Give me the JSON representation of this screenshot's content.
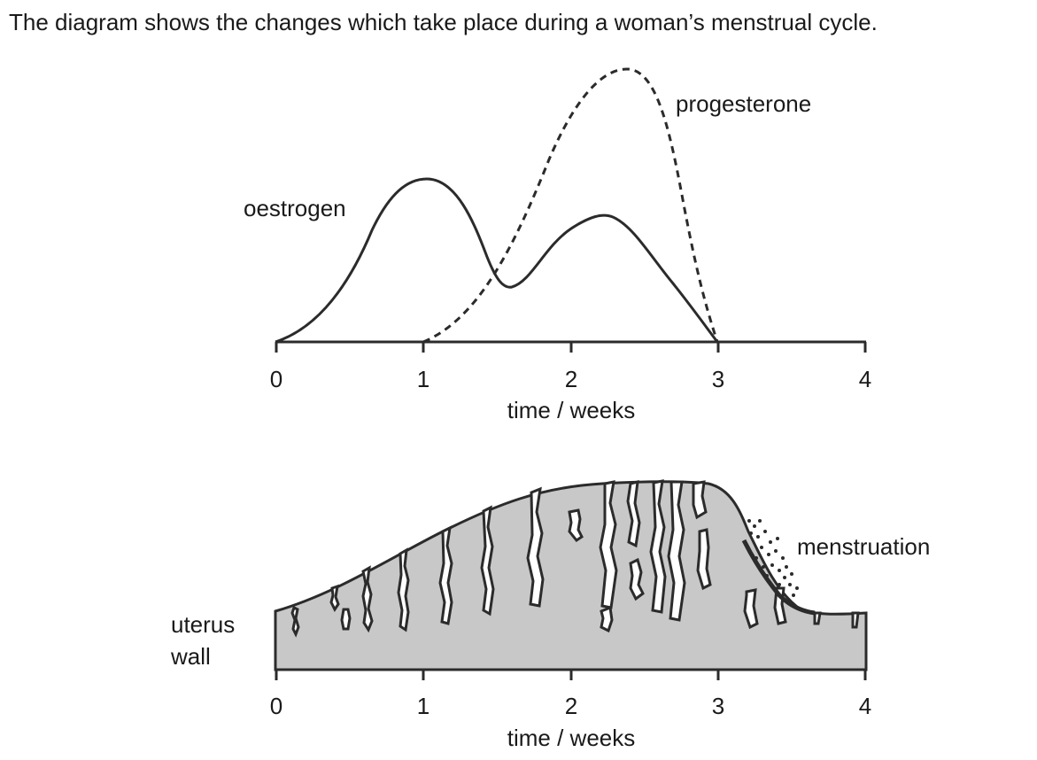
{
  "intro_text": "The diagram shows the changes which take place during a woman’s menstrual cycle.",
  "colors": {
    "line": "#2b2b2b",
    "uterus_fill": "#c8c8c8",
    "background": "#ffffff"
  },
  "hormone_graph": {
    "x_ticks": [
      "0",
      "1",
      "2",
      "3",
      "4"
    ],
    "x_label": "time / weeks",
    "oestrogen_label": "oestrogen",
    "progesterone_label": "progesterone",
    "x_range": [
      0,
      4
    ]
  },
  "uterus_graph": {
    "x_ticks": [
      "0",
      "1",
      "2",
      "3",
      "4"
    ],
    "x_label": "time / weeks",
    "wall_label_line1": "uterus",
    "wall_label_line2": "wall",
    "menstruation_label": "menstruation",
    "x_range": [
      0,
      4
    ]
  }
}
